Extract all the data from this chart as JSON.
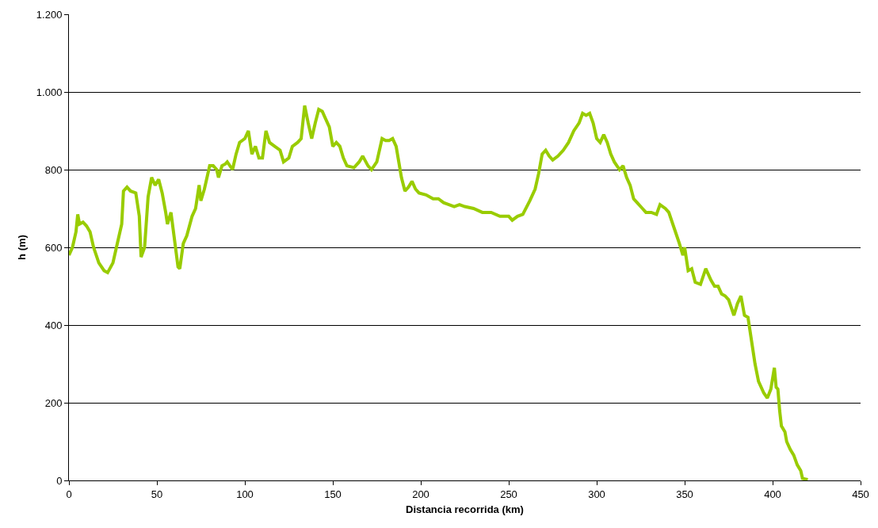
{
  "chart_data": {
    "type": "line",
    "xlabel": "Distancia recorrida (km)",
    "ylabel": "h (m)",
    "x": [
      0,
      2,
      4,
      5,
      6,
      8,
      10,
      12,
      14,
      17,
      20,
      22,
      25,
      27,
      30,
      31,
      33,
      35,
      38,
      40,
      41,
      43,
      45,
      47,
      49,
      51,
      53,
      55,
      56,
      58,
      60,
      62,
      63,
      65,
      67,
      70,
      72,
      74,
      75,
      77,
      80,
      82,
      84,
      85,
      87,
      89,
      90,
      93,
      95,
      97,
      100,
      102,
      104,
      106,
      108,
      110,
      112,
      114,
      117,
      120,
      122,
      125,
      127,
      130,
      132,
      134,
      136,
      138,
      140,
      142,
      144,
      146,
      148,
      150,
      152,
      154,
      156,
      158,
      162,
      165,
      167,
      170,
      172,
      175,
      178,
      180,
      182,
      184,
      186,
      189,
      191,
      193,
      195,
      197,
      199,
      203,
      207,
      210,
      213,
      216,
      219,
      222,
      225,
      230,
      235,
      240,
      245,
      250,
      252,
      255,
      258,
      262,
      265,
      267,
      269,
      271,
      273,
      275,
      278,
      281,
      284,
      287,
      290,
      292,
      294,
      296,
      298,
      300,
      302,
      304,
      306,
      308,
      310,
      313,
      315,
      317,
      319,
      321,
      323,
      326,
      328,
      331,
      334,
      336,
      339,
      341,
      344,
      347,
      349,
      350,
      352,
      354,
      356,
      359,
      362,
      365,
      367,
      369,
      371,
      373,
      375,
      378,
      380,
      382,
      384,
      386,
      388,
      390,
      392,
      395,
      397,
      399,
      401,
      402,
      403,
      404,
      405,
      407,
      408,
      410,
      412,
      414,
      416,
      417,
      420
    ],
    "series": [
      {
        "color": "#99cc00",
        "values": [
          580,
          600,
          640,
          685,
          660,
          665,
          655,
          640,
          600,
          560,
          540,
          535,
          560,
          600,
          660,
          745,
          755,
          745,
          740,
          680,
          575,
          600,
          730,
          780,
          760,
          775,
          740,
          690,
          660,
          690,
          620,
          550,
          545,
          610,
          630,
          680,
          700,
          760,
          720,
          750,
          810,
          810,
          800,
          780,
          810,
          815,
          820,
          800,
          840,
          870,
          880,
          900,
          840,
          860,
          830,
          830,
          900,
          870,
          860,
          850,
          820,
          830,
          860,
          870,
          880,
          965,
          920,
          880,
          920,
          955,
          950,
          930,
          910,
          860,
          870,
          860,
          830,
          810,
          805,
          820,
          835,
          810,
          800,
          820,
          880,
          875,
          875,
          880,
          860,
          780,
          745,
          755,
          770,
          750,
          740,
          735,
          725,
          725,
          715,
          710,
          705,
          710,
          705,
          700,
          690,
          690,
          680,
          680,
          670,
          680,
          685,
          720,
          750,
          790,
          840,
          850,
          835,
          825,
          835,
          850,
          870,
          900,
          920,
          945,
          940,
          945,
          920,
          880,
          870,
          890,
          870,
          840,
          820,
          800,
          810,
          780,
          760,
          725,
          715,
          700,
          690,
          690,
          685,
          710,
          700,
          690,
          650,
          610,
          580,
          600,
          540,
          545,
          510,
          505,
          545,
          515,
          500,
          500,
          480,
          475,
          465,
          425,
          455,
          475,
          425,
          420,
          360,
          300,
          255,
          225,
          212,
          235,
          290,
          240,
          235,
          180,
          140,
          125,
          100,
          80,
          65,
          40,
          25,
          5,
          2
        ]
      }
    ],
    "xlim": [
      0,
      450
    ],
    "xticks": [
      0,
      50,
      100,
      150,
      200,
      250,
      300,
      350,
      400,
      450
    ],
    "ylim": [
      0,
      1200
    ],
    "yticks": [
      0,
      200,
      400,
      600,
      800,
      {
        "value": 1000,
        "label": "1.000"
      },
      {
        "value": 1200,
        "label": "1.200"
      }
    ],
    "grid": "y",
    "marker": "none",
    "line_style": "solid"
  }
}
